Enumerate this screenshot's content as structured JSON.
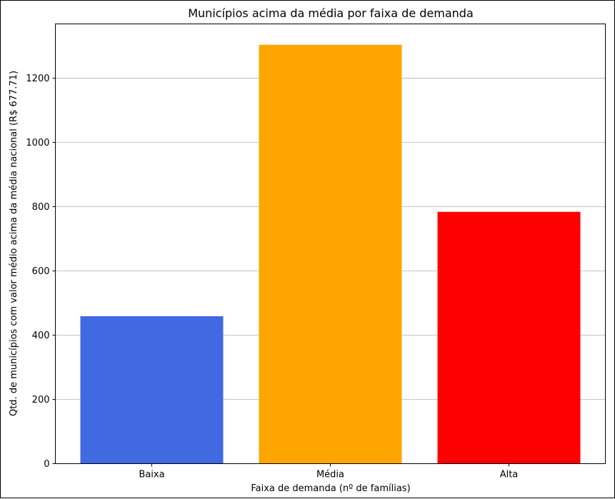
{
  "chart_data": {
    "type": "bar",
    "title": "Municípios acima da média por faixa de demanda",
    "xlabel": "Faixa de demanda (nº de famílias)",
    "ylabel": "Qtd. de municípios com valor médio acima da média nacional (R$ 677.71)",
    "categories": [
      "Baixa",
      "Média",
      "Alta"
    ],
    "values": [
      459,
      1304,
      784
    ],
    "colors": [
      "#4169e1",
      "#ffa500",
      "#ff0000"
    ],
    "ylim": [
      0,
      1369
    ],
    "yticks": [
      0,
      200,
      400,
      600,
      800,
      1000,
      1200
    ],
    "grid": "y"
  }
}
